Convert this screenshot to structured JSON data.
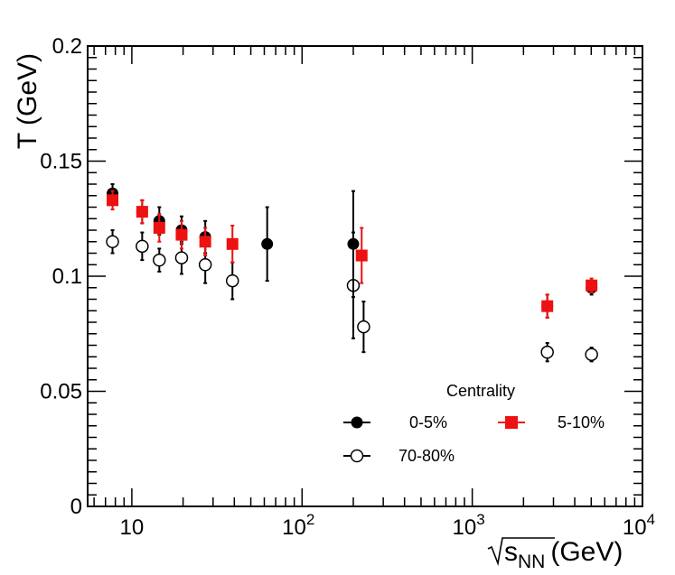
{
  "chart_data": {
    "type": "scatter",
    "x_scale": "log",
    "xlim": [
      5.5,
      10000
    ],
    "ylim": [
      0,
      0.2
    ],
    "ylabel": "T (GeV)",
    "xlabel_prefix": "√",
    "xlabel_main": "s",
    "xlabel_sub": "NN",
    "xlabel_unit": "(GeV)",
    "y_ticks": [
      {
        "value": 0,
        "label": "0"
      },
      {
        "value": 0.05,
        "label": "0.05"
      },
      {
        "value": 0.1,
        "label": "0.1"
      },
      {
        "value": 0.15,
        "label": "0.15"
      },
      {
        "value": 0.2,
        "label": "0.2"
      }
    ],
    "x_ticks": [
      {
        "value": 10,
        "base": "10",
        "exp": ""
      },
      {
        "value": 100,
        "base": "10",
        "exp": "2"
      },
      {
        "value": 1000,
        "base": "10",
        "exp": "3"
      },
      {
        "value": 10000,
        "base": "10",
        "exp": "4"
      }
    ],
    "legend": {
      "title": "Centrality",
      "position": "bottom-right"
    },
    "series": [
      {
        "name": "0-5%",
        "marker": "filled-circle",
        "color": "#000000",
        "points": [
          {
            "x": 7.7,
            "y": 0.136,
            "err": 0.004
          },
          {
            "x": 11.5,
            "y": 0.128,
            "err": 0.005
          },
          {
            "x": 14.5,
            "y": 0.124,
            "err": 0.006
          },
          {
            "x": 19.6,
            "y": 0.12,
            "err": 0.006
          },
          {
            "x": 27,
            "y": 0.117,
            "err": 0.007
          },
          {
            "x": 62.4,
            "y": 0.114,
            "err": 0.016
          },
          {
            "x": 200,
            "y": 0.114,
            "err": 0.023
          },
          {
            "x": 2760,
            "y": 0.087,
            "err": 0.005
          },
          {
            "x": 5020,
            "y": 0.095,
            "err": 0.003
          }
        ]
      },
      {
        "name": "5-10%",
        "marker": "filled-square",
        "color": "#ee1111",
        "points": [
          {
            "x": 7.7,
            "y": 0.133,
            "err": 0.004
          },
          {
            "x": 11.5,
            "y": 0.128,
            "err": 0.005
          },
          {
            "x": 14.5,
            "y": 0.121,
            "err": 0.006
          },
          {
            "x": 19.6,
            "y": 0.118,
            "err": 0.006
          },
          {
            "x": 27,
            "y": 0.115,
            "err": 0.006
          },
          {
            "x": 39,
            "y": 0.114,
            "err": 0.008
          },
          {
            "x": 224,
            "y": 0.109,
            "err": 0.012
          },
          {
            "x": 2760,
            "y": 0.087,
            "err": 0.005
          },
          {
            "x": 5020,
            "y": 0.096,
            "err": 0.003
          }
        ]
      },
      {
        "name": "70-80%",
        "marker": "open-circle",
        "color": "#000000",
        "points": [
          {
            "x": 7.7,
            "y": 0.115,
            "err": 0.005
          },
          {
            "x": 11.5,
            "y": 0.113,
            "err": 0.006
          },
          {
            "x": 14.5,
            "y": 0.107,
            "err": 0.005
          },
          {
            "x": 19.6,
            "y": 0.108,
            "err": 0.007
          },
          {
            "x": 27,
            "y": 0.105,
            "err": 0.008
          },
          {
            "x": 39,
            "y": 0.098,
            "err": 0.008
          },
          {
            "x": 200,
            "y": 0.096,
            "err": 0.023
          },
          {
            "x": 230,
            "y": 0.078,
            "err": 0.011
          },
          {
            "x": 2760,
            "y": 0.067,
            "err": 0.004
          },
          {
            "x": 5020,
            "y": 0.066,
            "err": 0.003
          }
        ]
      }
    ]
  }
}
